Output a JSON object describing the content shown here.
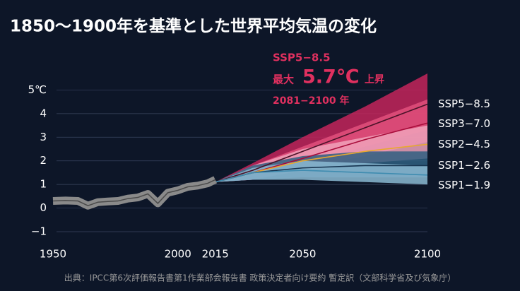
{
  "chart_data": {
    "type": "projection",
    "title": "1850～1900年を基準とした世界平均気温の変化",
    "source": "出典：IPCC第6次評価報告書第1作業部会報告書 政策決定者向け要約 暫定訳（文部科学省及び気象庁）",
    "annotation": {
      "scenario": "SSP5−8.5",
      "prefix": "最大",
      "value": "5.7℃",
      "suffix": "上昇",
      "period": "2081−2100 年"
    },
    "xlim": [
      1950,
      2100
    ],
    "xticks": [
      1950,
      2000,
      2015,
      2050,
      2100
    ],
    "ylim": [
      -1,
      6
    ],
    "yticks": [
      {
        "value": -1,
        "label": "−1"
      },
      0,
      1,
      2,
      3,
      4,
      {
        "value": 5,
        "label": "5℃"
      }
    ],
    "grid": true,
    "historical": {
      "color": "#8a8a8a",
      "x": [
        1950,
        1955,
        1960,
        1964,
        1968,
        1972,
        1976,
        1980,
        1984,
        1988,
        1992,
        1996,
        2000,
        2004,
        2008,
        2012,
        2015
      ],
      "values": [
        0.3,
        0.32,
        0.3,
        0.1,
        0.25,
        0.28,
        0.3,
        0.4,
        0.45,
        0.6,
        0.2,
        0.65,
        0.75,
        0.9,
        0.95,
        1.05,
        1.2
      ]
    },
    "x": [
      2015,
      2030,
      2050,
      2075,
      2100
    ],
    "series": [
      {
        "name": "SSP5−8.5",
        "color": "#c4245a",
        "line_color": "#4a1228",
        "values": [
          1.1,
          1.6,
          2.4,
          3.4,
          4.4
        ],
        "low": [
          1.1,
          1.3,
          1.9,
          2.6,
          3.3
        ],
        "high": [
          1.1,
          1.9,
          3.0,
          4.3,
          5.7
        ]
      },
      {
        "name": "SSP3−7.0",
        "color": "#e2507c",
        "line_color": "#a80c3a",
        "values": [
          1.1,
          1.5,
          2.1,
          2.9,
          3.6
        ],
        "low": [
          1.1,
          1.2,
          1.7,
          2.2,
          2.8
        ],
        "high": [
          1.1,
          1.8,
          2.6,
          3.6,
          4.6
        ]
      },
      {
        "name": "SSP2−4.5",
        "color": "#f0a2bb",
        "line_color": "#e8a830",
        "values": [
          1.1,
          1.5,
          2.0,
          2.4,
          2.7
        ],
        "low": [
          1.1,
          1.2,
          1.6,
          1.9,
          2.1
        ],
        "high": [
          1.1,
          1.8,
          2.5,
          3.0,
          3.5
        ]
      },
      {
        "name": "SSP1−2.6",
        "color": "#2f5f80",
        "line_color": "#163450",
        "values": [
          1.1,
          1.5,
          1.7,
          1.8,
          1.8
        ],
        "low": [
          1.1,
          1.2,
          1.3,
          1.3,
          1.3
        ],
        "high": [
          1.1,
          1.8,
          2.2,
          2.4,
          2.4
        ]
      },
      {
        "name": "SSP1−1.9",
        "color": "#8bbad2",
        "line_color": "#3f8cb0",
        "values": [
          1.1,
          1.5,
          1.6,
          1.5,
          1.4
        ],
        "low": [
          1.1,
          1.2,
          1.2,
          1.1,
          1.0
        ],
        "high": [
          1.1,
          1.7,
          2.0,
          1.9,
          1.8
        ]
      }
    ]
  }
}
